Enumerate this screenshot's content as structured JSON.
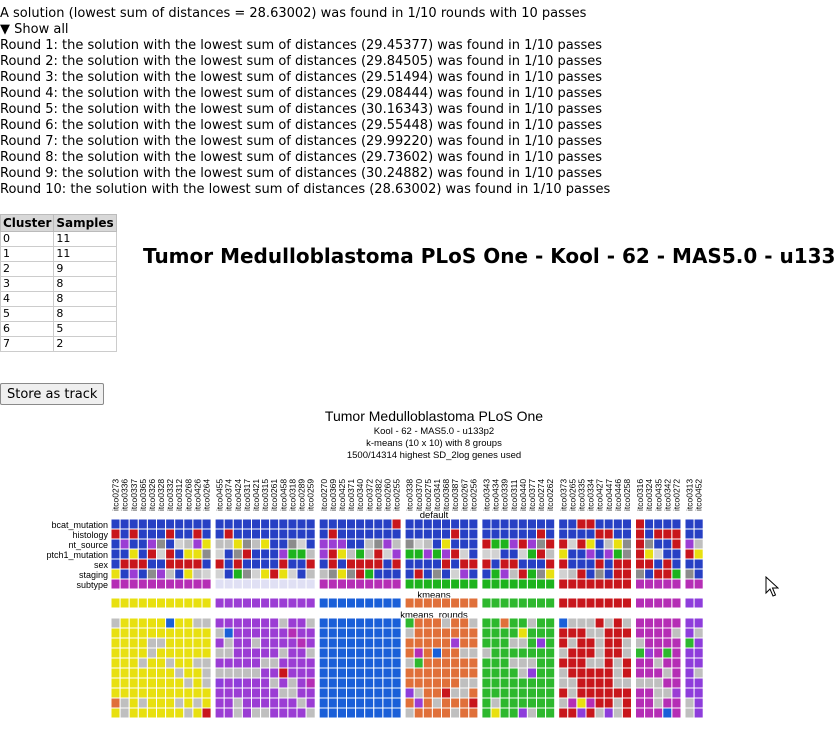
{
  "summary": "A solution (lowest sum of distances = 28.63002) was found in 1/10 rounds with 10 passes",
  "toggle": {
    "icon": "triangle-down-icon",
    "glyph": "▼",
    "label": "Show all"
  },
  "rounds": [
    "Round 1: the solution with the lowest sum of distances (29.45377) was found in 1/10 passes",
    "Round 2: the solution with the lowest sum of distances (29.84505) was found in 1/10 passes",
    "Round 3: the solution with the lowest sum of distances (29.51494) was found in 1/10 passes",
    "Round 4: the solution with the lowest sum of distances (29.08444) was found in 1/10 passes",
    "Round 5: the solution with the lowest sum of distances (30.16343) was found in 1/10 passes",
    "Round 6: the solution with the lowest sum of distances (29.55448) was found in 1/10 passes",
    "Round 7: the solution with the lowest sum of distances (29.99220) was found in 1/10 passes",
    "Round 8: the solution with the lowest sum of distances (29.73602) was found in 1/10 passes",
    "Round 9: the solution with the lowest sum of distances (30.24882) was found in 1/10 passes",
    "Round 10: the solution with the lowest sum of distances (28.63002) was found in 1/10 passes"
  ],
  "cluster_table": {
    "headers": [
      "Cluster",
      "Samples"
    ],
    "rows": [
      [
        "0",
        "11"
      ],
      [
        "1",
        "11"
      ],
      [
        "2",
        "9"
      ],
      [
        "3",
        "8"
      ],
      [
        "4",
        "8"
      ],
      [
        "5",
        "8"
      ],
      [
        "6",
        "5"
      ],
      [
        "7",
        "2"
      ]
    ]
  },
  "big_title": "Tumor Medulloblastoma PLoS One - Kool - 62 - MAS5.0 - u133p2",
  "store_button": "Store as track",
  "heatmap": {
    "title": "Tumor Medulloblastoma PLoS One",
    "subtitles": [
      "Kool - 62 - MAS5.0 - u133p2",
      "k-means (10 x 10) with 8 groups",
      "1500/14314 highest SD_2log genes used"
    ],
    "section_default": "default",
    "section_kmeans": "kmeans",
    "section_rounds": "kmeans_rounds",
    "track_labels": [
      "bcat_mutation",
      "histology",
      "nt_source",
      "ptch1_mutation",
      "sex",
      "staging",
      "subtype"
    ],
    "group_colors": [
      "#e8e010",
      "#9b3dd4",
      "#1a5fd8",
      "#e0703a",
      "#2eb82e",
      "#c8161c",
      "#b52eb5",
      "#8e3ddb"
    ],
    "groups": [
      [
        "itco0273",
        "itco0336",
        "itco0337",
        "itco0365",
        "itco0326",
        "itco0328",
        "itco0332",
        "itco0312",
        "itco0268",
        "itco0426",
        "itco0264"
      ],
      [
        "itco0455",
        "itco0374",
        "itco0424",
        "itco0317",
        "itco0421",
        "itco0315",
        "itco0261",
        "itco0458",
        "itco0318",
        "itco0289",
        "itco0259"
      ],
      [
        "itco0270",
        "itco0369",
        "itco0425",
        "itco0371",
        "itco0340",
        "itco0372",
        "itco0382",
        "itco0260",
        "itco0255"
      ],
      [
        "itco0338",
        "itco0370",
        "itco0275",
        "itco0341",
        "itco0368",
        "itco0387",
        "itco0267",
        "itco0256"
      ],
      [
        "itco0343",
        "itco0434",
        "itco0339",
        "itco0311",
        "itco0440",
        "itco0377",
        "itco0274",
        "itco0262"
      ],
      [
        "itco0373",
        "itco0265",
        "itco0335",
        "itco0334",
        "itco0427",
        "itco0447",
        "itco0446",
        "itco0258"
      ],
      [
        "itco0316",
        "itco0324",
        "itco0435",
        "itco0342",
        "itco0272"
      ],
      [
        "itco0313",
        "itco0452"
      ]
    ]
  },
  "cursor_icon": "mouse-pointer-icon"
}
